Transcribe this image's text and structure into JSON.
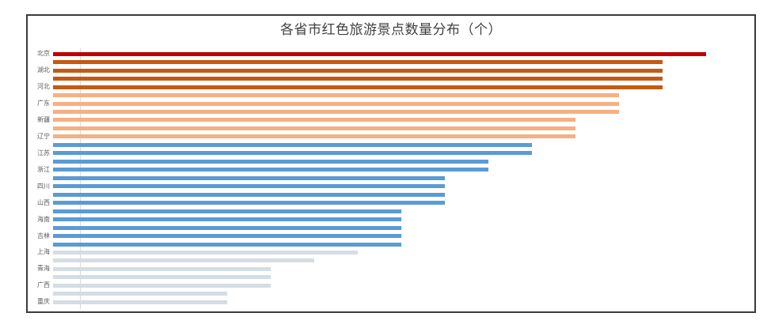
{
  "page": {
    "background_color": "#ffffff",
    "chart_border_color": "#3a3a3a",
    "axis_line_color": "#d9d9d9",
    "title_color": "#404040",
    "label_color": "#595959"
  },
  "chart_data": {
    "type": "bar",
    "orientation": "horizontal",
    "title": "各省市红色旅游景点数量分布（个）",
    "xlabel": "",
    "ylabel": "",
    "legend": "none",
    "gridlines": false,
    "value_axis": {
      "visible": false,
      "range": [
        0,
        16.1
      ]
    },
    "category_axis": {
      "visible_labels_every": 2,
      "sorted": "descending"
    },
    "palette": {
      "top": "#C00000",
      "high": "#C55A11",
      "upper_mid": "#F4B183",
      "mid": "#5B9BD5",
      "low": "#D6DCE4"
    },
    "bars": [
      {
        "label": "北京",
        "value": 15,
        "color": "#C00000"
      },
      {
        "label": "",
        "value": 14,
        "color": "#C55A11"
      },
      {
        "label": "湖北",
        "value": 14,
        "color": "#C55A11"
      },
      {
        "label": "",
        "value": 14,
        "color": "#C55A11"
      },
      {
        "label": "河北",
        "value": 14,
        "color": "#C55A11"
      },
      {
        "label": "",
        "value": 13,
        "color": "#F4B183"
      },
      {
        "label": "广东",
        "value": 13,
        "color": "#F4B183"
      },
      {
        "label": "",
        "value": 13,
        "color": "#F4B183"
      },
      {
        "label": "新疆",
        "value": 12,
        "color": "#F4B183"
      },
      {
        "label": "",
        "value": 12,
        "color": "#F4B183"
      },
      {
        "label": "辽宁",
        "value": 12,
        "color": "#F4B183"
      },
      {
        "label": "",
        "value": 11,
        "color": "#5B9BD5"
      },
      {
        "label": "江苏",
        "value": 11,
        "color": "#5B9BD5"
      },
      {
        "label": "",
        "value": 10,
        "color": "#5B9BD5"
      },
      {
        "label": "浙江",
        "value": 10,
        "color": "#5B9BD5"
      },
      {
        "label": "",
        "value": 9,
        "color": "#5B9BD5"
      },
      {
        "label": "四川",
        "value": 9,
        "color": "#5B9BD5"
      },
      {
        "label": "",
        "value": 9,
        "color": "#5B9BD5"
      },
      {
        "label": "山西",
        "value": 9,
        "color": "#5B9BD5"
      },
      {
        "label": "",
        "value": 8,
        "color": "#5B9BD5"
      },
      {
        "label": "海南",
        "value": 8,
        "color": "#5B9BD5"
      },
      {
        "label": "",
        "value": 8,
        "color": "#5B9BD5"
      },
      {
        "label": "吉林",
        "value": 8,
        "color": "#5B9BD5"
      },
      {
        "label": "",
        "value": 8,
        "color": "#5B9BD5"
      },
      {
        "label": "上海",
        "value": 7,
        "color": "#D6DCE4"
      },
      {
        "label": "",
        "value": 6,
        "color": "#D6DCE4"
      },
      {
        "label": "青海",
        "value": 5,
        "color": "#D6DCE4"
      },
      {
        "label": "",
        "value": 5,
        "color": "#D6DCE4"
      },
      {
        "label": "广西",
        "value": 5,
        "color": "#D6DCE4"
      },
      {
        "label": "",
        "value": 4,
        "color": "#D6DCE4"
      },
      {
        "label": "重庆",
        "value": 4,
        "color": "#D6DCE4"
      }
    ]
  }
}
